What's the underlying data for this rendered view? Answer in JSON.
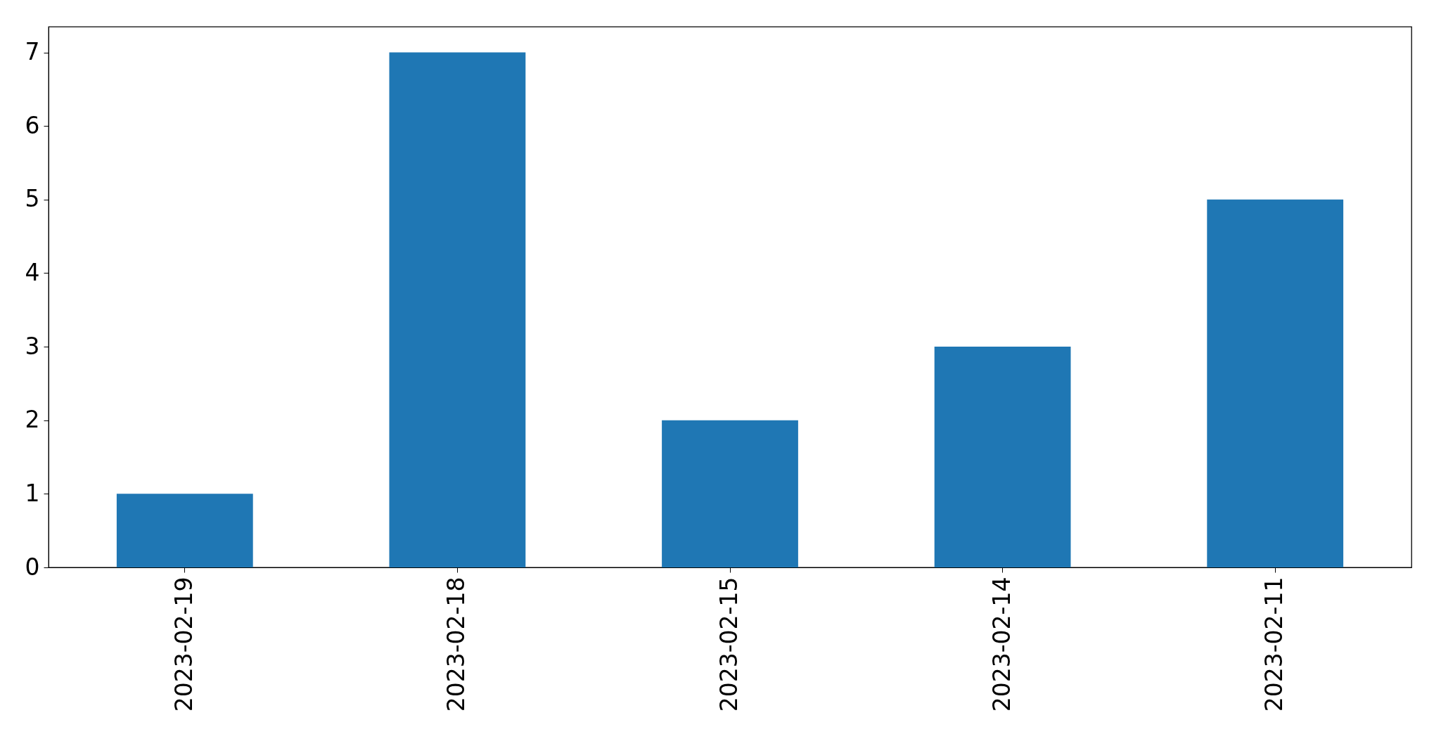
{
  "chart_data": {
    "type": "bar",
    "categories": [
      "2023-02-19",
      "2023-02-18",
      "2023-02-15",
      "2023-02-14",
      "2023-02-11"
    ],
    "values": [
      1,
      7,
      2,
      3,
      5
    ],
    "color": "#1f77b4",
    "ylim": [
      0,
      7.35
    ],
    "yticks": [
      0,
      1,
      2,
      3,
      4,
      5,
      6,
      7
    ]
  }
}
